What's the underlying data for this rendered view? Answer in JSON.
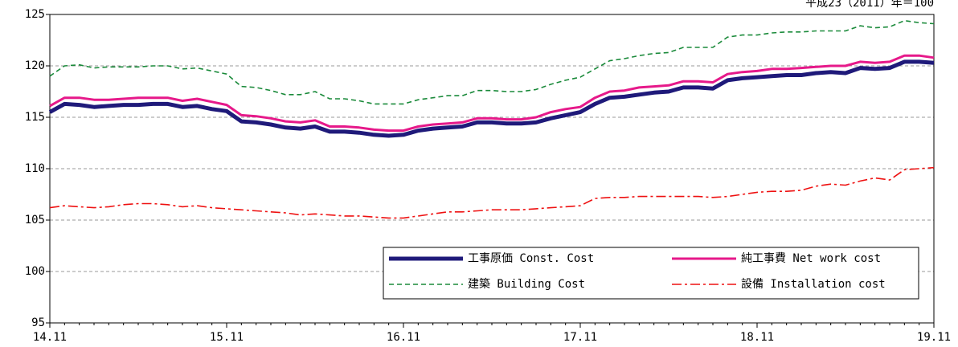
{
  "chart_data": {
    "type": "line",
    "subtitle": "平成23（2011）年＝100",
    "categories": [
      "14.11",
      null,
      null,
      null,
      null,
      null,
      null,
      null,
      null,
      null,
      null,
      null,
      "15.11",
      null,
      null,
      null,
      null,
      null,
      null,
      null,
      null,
      null,
      null,
      null,
      "16.11",
      null,
      null,
      null,
      null,
      null,
      null,
      null,
      null,
      null,
      null,
      null,
      "17.11",
      null,
      null,
      null,
      null,
      null,
      null,
      null,
      null,
      null,
      null,
      null,
      "18.11",
      null,
      null,
      null,
      null,
      null,
      null,
      null,
      null,
      null,
      null,
      null,
      "19.11"
    ],
    "ylim": [
      95,
      125
    ],
    "yticks": [
      95,
      100,
      105,
      110,
      115,
      120,
      125
    ],
    "grid": true,
    "series": [
      {
        "name": "工事原価 Const. Cost",
        "color": "#1f1a7a",
        "line_style": "solid",
        "line_width": 5,
        "values": [
          115.5,
          116.3,
          116.2,
          116.0,
          116.1,
          116.2,
          116.2,
          116.3,
          116.3,
          116.0,
          116.1,
          115.8,
          115.6,
          114.6,
          114.5,
          114.3,
          114.0,
          113.9,
          114.1,
          113.6,
          113.6,
          113.5,
          113.3,
          113.2,
          113.3,
          113.7,
          113.9,
          114.0,
          114.1,
          114.5,
          114.5,
          114.4,
          114.4,
          114.5,
          114.9,
          115.2,
          115.5,
          116.3,
          116.9,
          117.0,
          117.2,
          117.4,
          117.5,
          117.9,
          117.9,
          117.8,
          118.6,
          118.8,
          118.9,
          119.0,
          119.1,
          119.1,
          119.3,
          119.4,
          119.3,
          119.8,
          119.7,
          119.8,
          120.4,
          120.4,
          120.3
        ]
      },
      {
        "name": "純工事費 Net work cost",
        "color": "#e6198a",
        "line_style": "solid",
        "line_width": 3,
        "values": [
          116.1,
          116.9,
          116.9,
          116.7,
          116.7,
          116.8,
          116.9,
          116.9,
          116.9,
          116.6,
          116.8,
          116.5,
          116.2,
          115.2,
          115.1,
          114.9,
          114.6,
          114.5,
          114.7,
          114.1,
          114.1,
          114.0,
          113.8,
          113.7,
          113.7,
          114.1,
          114.3,
          114.4,
          114.5,
          114.9,
          114.9,
          114.8,
          114.8,
          115.0,
          115.5,
          115.8,
          116.0,
          116.9,
          117.5,
          117.6,
          117.9,
          118.0,
          118.1,
          118.5,
          118.5,
          118.4,
          119.2,
          119.4,
          119.5,
          119.7,
          119.7,
          119.8,
          119.9,
          120.0,
          120.0,
          120.4,
          120.3,
          120.4,
          121.0,
          121.0,
          120.8
        ]
      },
      {
        "name": "建築 Building Cost",
        "color": "#1a8a3a",
        "line_style": "dashed",
        "line_width": 1.6,
        "values": [
          119.0,
          120.0,
          120.1,
          119.8,
          119.9,
          119.9,
          119.9,
          120.0,
          120.0,
          119.7,
          119.8,
          119.5,
          119.2,
          118.0,
          117.9,
          117.6,
          117.2,
          117.2,
          117.5,
          116.8,
          116.8,
          116.6,
          116.3,
          116.3,
          116.3,
          116.7,
          116.9,
          117.1,
          117.1,
          117.6,
          117.6,
          117.5,
          117.5,
          117.7,
          118.2,
          118.6,
          118.9,
          119.7,
          120.5,
          120.7,
          121.0,
          121.2,
          121.3,
          121.8,
          121.8,
          121.8,
          122.8,
          123.0,
          123.0,
          123.2,
          123.3,
          123.3,
          123.4,
          123.4,
          123.4,
          123.9,
          123.7,
          123.8,
          124.4,
          124.2,
          124.1
        ]
      },
      {
        "name": "設備 Installation cost",
        "color": "#ee1111",
        "line_style": "dashdot",
        "line_width": 1.6,
        "values": [
          106.2,
          106.4,
          106.3,
          106.2,
          106.3,
          106.5,
          106.6,
          106.6,
          106.5,
          106.3,
          106.4,
          106.2,
          106.1,
          106.0,
          105.9,
          105.8,
          105.7,
          105.5,
          105.6,
          105.5,
          105.4,
          105.4,
          105.3,
          105.2,
          105.2,
          105.4,
          105.6,
          105.8,
          105.8,
          105.9,
          106.0,
          106.0,
          106.0,
          106.1,
          106.2,
          106.3,
          106.4,
          107.1,
          107.2,
          107.2,
          107.3,
          107.3,
          107.3,
          107.3,
          107.3,
          107.2,
          107.3,
          107.5,
          107.7,
          107.8,
          107.8,
          107.9,
          108.3,
          108.5,
          108.4,
          108.8,
          109.1,
          108.9,
          109.9,
          110.0,
          110.1
        ]
      }
    ]
  }
}
